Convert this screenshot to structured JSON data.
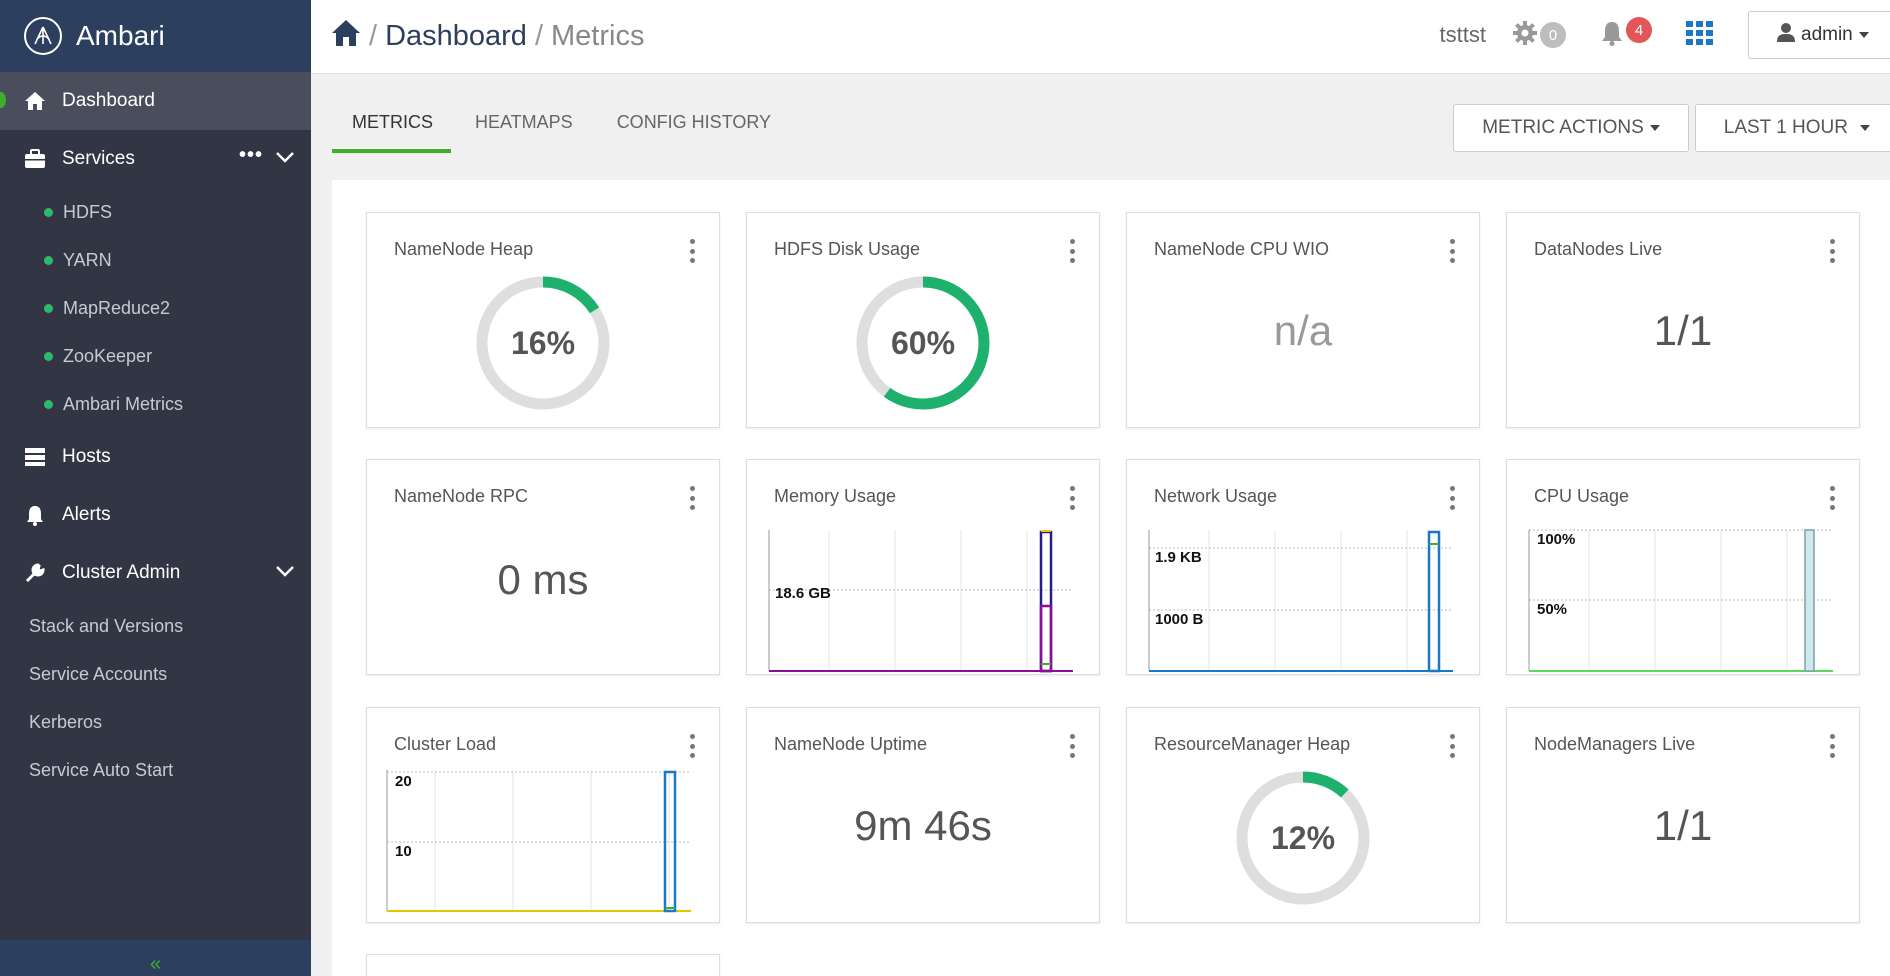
{
  "app": {
    "name": "Ambari"
  },
  "breadcrumb": {
    "home": "home-icon",
    "section": "Dashboard",
    "page": "Metrics"
  },
  "header": {
    "cluster": "tsttst",
    "ops_count": "0",
    "alerts_count": "4",
    "user": "admin"
  },
  "sidebar": {
    "dashboard": "Dashboard",
    "services": "Services",
    "services_more": "•••",
    "service_items": [
      "HDFS",
      "YARN",
      "MapReduce2",
      "ZooKeeper",
      "Ambari Metrics"
    ],
    "hosts": "Hosts",
    "alerts": "Alerts",
    "cluster_admin": "Cluster Admin",
    "admin_items": [
      "Stack and Versions",
      "Service Accounts",
      "Kerberos",
      "Service Auto Start"
    ],
    "collapse": "«"
  },
  "tabs": [
    "METRICS",
    "HEATMAPS",
    "CONFIG HISTORY"
  ],
  "actions": {
    "metric_actions": "METRIC ACTIONS",
    "time_range": "LAST 1 HOUR"
  },
  "widgets": {
    "namenode_heap": {
      "title": "NameNode Heap",
      "value": "16%",
      "percent": 16
    },
    "hdfs_disk": {
      "title": "HDFS Disk Usage",
      "value": "60%",
      "percent": 60
    },
    "cpu_wio": {
      "title": "NameNode CPU WIO",
      "value": "n/a"
    },
    "datanodes": {
      "title": "DataNodes Live",
      "value": "1/1"
    },
    "rpc": {
      "title": "NameNode RPC",
      "value": "0 ms"
    },
    "memory": {
      "title": "Memory Usage",
      "label": "18.6 GB"
    },
    "network": {
      "title": "Network Usage",
      "label_top": "1.9 KB",
      "label_mid": "1000 B"
    },
    "cpu": {
      "title": "CPU Usage",
      "label_top": "100%",
      "label_mid": "50%"
    },
    "load": {
      "title": "Cluster Load",
      "label_top": "20",
      "label_mid": "10"
    },
    "uptime": {
      "title": "NameNode Uptime",
      "value": "9m 46s"
    },
    "rm_heap": {
      "title": "ResourceManager Heap",
      "value": "12%",
      "percent": 12
    },
    "nodemanagers": {
      "title": "NodeManagers Live",
      "value": "1/1"
    }
  },
  "colors": {
    "sidebar": "#323544",
    "brand": "#2c3f5e",
    "accent": "#3fae2a",
    "donut": "#1eb16d",
    "alert": "#e25559"
  }
}
